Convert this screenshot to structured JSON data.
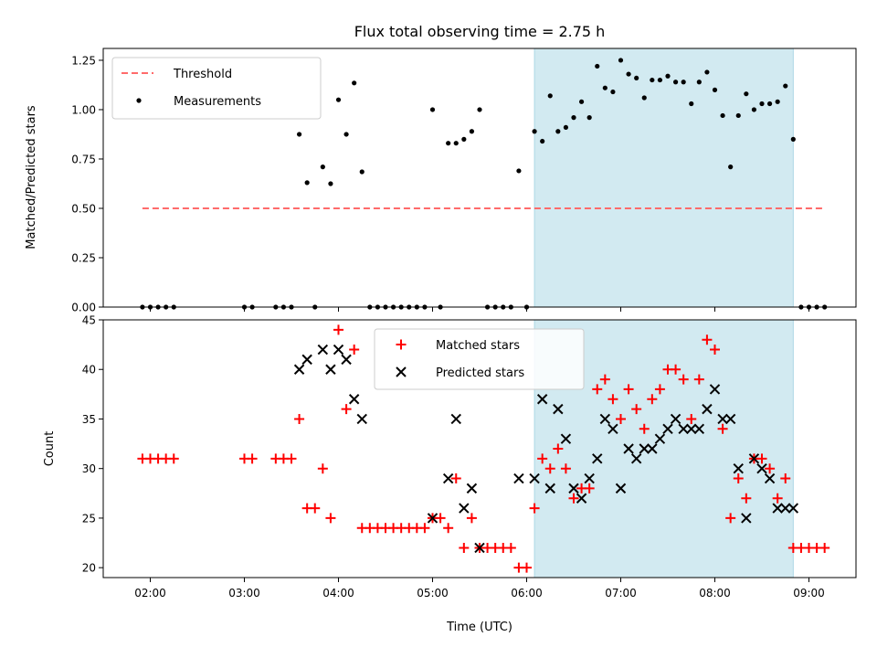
{
  "chart_data": [
    {
      "type": "scatter",
      "title": "Flux total observing time = 2.75 h",
      "ylabel": "Matched/Predicted stars",
      "xlabel": "",
      "x_axis_type": "time",
      "ylim": [
        0,
        1.31
      ],
      "xlim": [
        "01:30",
        "09:30"
      ],
      "yticks": [
        "0.00",
        "0.25",
        "0.50",
        "0.75",
        "1.00",
        "1.25"
      ],
      "xticks": [
        "02:00",
        "03:00",
        "04:00",
        "05:00",
        "06:00",
        "07:00",
        "08:00",
        "09:00"
      ],
      "show_xtick_labels": false,
      "grid": false,
      "legend_position": "top-left",
      "shaded_region": {
        "x_start": "06:05",
        "x_end": "08:50",
        "color": "#add8e6"
      },
      "series": [
        {
          "name": "Threshold",
          "kind": "line",
          "style": "dashed",
          "color": "#ff6b6b",
          "points": [
            {
              "x": "01:55",
              "y": 0.5
            },
            {
              "x": "09:10",
              "y": 0.5
            }
          ]
        },
        {
          "name": "Measurements",
          "kind": "dot",
          "color": "#000000",
          "points": [
            {
              "x": "01:55",
              "y": 0
            },
            {
              "x": "02:00",
              "y": 0
            },
            {
              "x": "02:05",
              "y": 0
            },
            {
              "x": "02:10",
              "y": 0
            },
            {
              "x": "02:15",
              "y": 0
            },
            {
              "x": "03:00",
              "y": 0
            },
            {
              "x": "03:05",
              "y": 0
            },
            {
              "x": "03:20",
              "y": 0
            },
            {
              "x": "03:25",
              "y": 0
            },
            {
              "x": "03:30",
              "y": 0
            },
            {
              "x": "03:35",
              "y": 0.875
            },
            {
              "x": "03:40",
              "y": 0.63
            },
            {
              "x": "03:45",
              "y": 0
            },
            {
              "x": "03:50",
              "y": 0.71
            },
            {
              "x": "03:55",
              "y": 0.625
            },
            {
              "x": "04:00",
              "y": 1.05
            },
            {
              "x": "04:05",
              "y": 0.875
            },
            {
              "x": "04:10",
              "y": 1.135
            },
            {
              "x": "04:15",
              "y": 0.685
            },
            {
              "x": "04:20",
              "y": 0
            },
            {
              "x": "04:25",
              "y": 0
            },
            {
              "x": "04:30",
              "y": 0
            },
            {
              "x": "04:35",
              "y": 0
            },
            {
              "x": "04:40",
              "y": 0
            },
            {
              "x": "04:45",
              "y": 0
            },
            {
              "x": "04:50",
              "y": 0
            },
            {
              "x": "04:55",
              "y": 0
            },
            {
              "x": "05:00",
              "y": 1.0
            },
            {
              "x": "05:05",
              "y": 0
            },
            {
              "x": "05:10",
              "y": 0.83
            },
            {
              "x": "05:15",
              "y": 0.83
            },
            {
              "x": "05:20",
              "y": 0.85
            },
            {
              "x": "05:25",
              "y": 0.89
            },
            {
              "x": "05:30",
              "y": 1.0
            },
            {
              "x": "05:35",
              "y": 0
            },
            {
              "x": "05:40",
              "y": 0
            },
            {
              "x": "05:45",
              "y": 0
            },
            {
              "x": "05:50",
              "y": 0
            },
            {
              "x": "05:55",
              "y": 0.69
            },
            {
              "x": "06:00",
              "y": 0
            },
            {
              "x": "06:05",
              "y": 0.89
            },
            {
              "x": "06:10",
              "y": 0.84
            },
            {
              "x": "06:15",
              "y": 1.07
            },
            {
              "x": "06:20",
              "y": 0.89
            },
            {
              "x": "06:25",
              "y": 0.91
            },
            {
              "x": "06:30",
              "y": 0.96
            },
            {
              "x": "06:35",
              "y": 1.04
            },
            {
              "x": "06:40",
              "y": 0.96
            },
            {
              "x": "06:45",
              "y": 1.22
            },
            {
              "x": "06:50",
              "y": 1.11
            },
            {
              "x": "06:55",
              "y": 1.09
            },
            {
              "x": "07:00",
              "y": 1.25
            },
            {
              "x": "07:05",
              "y": 1.18
            },
            {
              "x": "07:10",
              "y": 1.16
            },
            {
              "x": "07:15",
              "y": 1.06
            },
            {
              "x": "07:20",
              "y": 1.15
            },
            {
              "x": "07:25",
              "y": 1.15
            },
            {
              "x": "07:30",
              "y": 1.17
            },
            {
              "x": "07:35",
              "y": 1.14
            },
            {
              "x": "07:40",
              "y": 1.14
            },
            {
              "x": "07:45",
              "y": 1.03
            },
            {
              "x": "07:50",
              "y": 1.14
            },
            {
              "x": "07:55",
              "y": 1.19
            },
            {
              "x": "08:00",
              "y": 1.1
            },
            {
              "x": "08:05",
              "y": 0.97
            },
            {
              "x": "08:10",
              "y": 0.71
            },
            {
              "x": "08:15",
              "y": 0.97
            },
            {
              "x": "08:20",
              "y": 1.08
            },
            {
              "x": "08:25",
              "y": 1.0
            },
            {
              "x": "08:30",
              "y": 1.03
            },
            {
              "x": "08:35",
              "y": 1.03
            },
            {
              "x": "08:40",
              "y": 1.04
            },
            {
              "x": "08:45",
              "y": 1.12
            },
            {
              "x": "08:50",
              "y": 0.85
            },
            {
              "x": "08:55",
              "y": 0
            },
            {
              "x": "09:00",
              "y": 0
            },
            {
              "x": "09:05",
              "y": 0
            },
            {
              "x": "09:10",
              "y": 0
            }
          ]
        }
      ]
    },
    {
      "type": "scatter",
      "title": "",
      "ylabel": "Count",
      "xlabel": "Time (UTC)",
      "x_axis_type": "time",
      "ylim": [
        19,
        45
      ],
      "xlim": [
        "01:30",
        "09:30"
      ],
      "yticks": [
        "20",
        "25",
        "30",
        "35",
        "40",
        "45"
      ],
      "xticks": [
        "02:00",
        "03:00",
        "04:00",
        "05:00",
        "06:00",
        "07:00",
        "08:00",
        "09:00"
      ],
      "show_xtick_labels": true,
      "grid": false,
      "legend_position": "top-center",
      "shaded_region": {
        "x_start": "06:05",
        "x_end": "08:50",
        "color": "#add8e6"
      },
      "series": [
        {
          "name": "Matched stars",
          "kind": "plus",
          "color": "#ff0000",
          "points": [
            {
              "x": "01:55",
              "y": 31
            },
            {
              "x": "02:00",
              "y": 31
            },
            {
              "x": "02:05",
              "y": 31
            },
            {
              "x": "02:10",
              "y": 31
            },
            {
              "x": "02:15",
              "y": 31
            },
            {
              "x": "03:00",
              "y": 31
            },
            {
              "x": "03:05",
              "y": 31
            },
            {
              "x": "03:20",
              "y": 31
            },
            {
              "x": "03:25",
              "y": 31
            },
            {
              "x": "03:30",
              "y": 31
            },
            {
              "x": "03:35",
              "y": 35
            },
            {
              "x": "03:40",
              "y": 26
            },
            {
              "x": "03:45",
              "y": 26
            },
            {
              "x": "03:50",
              "y": 30
            },
            {
              "x": "03:55",
              "y": 25
            },
            {
              "x": "04:00",
              "y": 44
            },
            {
              "x": "04:05",
              "y": 36
            },
            {
              "x": "04:10",
              "y": 42
            },
            {
              "x": "04:15",
              "y": 24
            },
            {
              "x": "04:20",
              "y": 24
            },
            {
              "x": "04:25",
              "y": 24
            },
            {
              "x": "04:30",
              "y": 24
            },
            {
              "x": "04:35",
              "y": 24
            },
            {
              "x": "04:40",
              "y": 24
            },
            {
              "x": "04:45",
              "y": 24
            },
            {
              "x": "04:50",
              "y": 24
            },
            {
              "x": "04:55",
              "y": 24
            },
            {
              "x": "05:00",
              "y": 25
            },
            {
              "x": "05:05",
              "y": 25
            },
            {
              "x": "05:10",
              "y": 24
            },
            {
              "x": "05:15",
              "y": 29
            },
            {
              "x": "05:20",
              "y": 22
            },
            {
              "x": "05:25",
              "y": 25
            },
            {
              "x": "05:30",
              "y": 22
            },
            {
              "x": "05:35",
              "y": 22
            },
            {
              "x": "05:40",
              "y": 22
            },
            {
              "x": "05:45",
              "y": 22
            },
            {
              "x": "05:50",
              "y": 22
            },
            {
              "x": "05:55",
              "y": 20
            },
            {
              "x": "06:00",
              "y": 20
            },
            {
              "x": "06:05",
              "y": 26
            },
            {
              "x": "06:10",
              "y": 31
            },
            {
              "x": "06:15",
              "y": 30
            },
            {
              "x": "06:20",
              "y": 32
            },
            {
              "x": "06:25",
              "y": 30
            },
            {
              "x": "06:30",
              "y": 27
            },
            {
              "x": "06:35",
              "y": 28
            },
            {
              "x": "06:40",
              "y": 28
            },
            {
              "x": "06:45",
              "y": 38
            },
            {
              "x": "06:50",
              "y": 39
            },
            {
              "x": "06:55",
              "y": 37
            },
            {
              "x": "07:00",
              "y": 35
            },
            {
              "x": "07:05",
              "y": 38
            },
            {
              "x": "07:10",
              "y": 36
            },
            {
              "x": "07:15",
              "y": 34
            },
            {
              "x": "07:20",
              "y": 37
            },
            {
              "x": "07:25",
              "y": 38
            },
            {
              "x": "07:30",
              "y": 40
            },
            {
              "x": "07:35",
              "y": 40
            },
            {
              "x": "07:40",
              "y": 39
            },
            {
              "x": "07:45",
              "y": 35
            },
            {
              "x": "07:50",
              "y": 39
            },
            {
              "x": "07:55",
              "y": 43
            },
            {
              "x": "08:00",
              "y": 42
            },
            {
              "x": "08:05",
              "y": 34
            },
            {
              "x": "08:10",
              "y": 25
            },
            {
              "x": "08:15",
              "y": 29
            },
            {
              "x": "08:20",
              "y": 27
            },
            {
              "x": "08:25",
              "y": 31
            },
            {
              "x": "08:30",
              "y": 31
            },
            {
              "x": "08:35",
              "y": 30
            },
            {
              "x": "08:40",
              "y": 27
            },
            {
              "x": "08:45",
              "y": 29
            },
            {
              "x": "08:50",
              "y": 22
            },
            {
              "x": "08:55",
              "y": 22
            },
            {
              "x": "09:00",
              "y": 22
            },
            {
              "x": "09:05",
              "y": 22
            },
            {
              "x": "09:10",
              "y": 22
            }
          ]
        },
        {
          "name": "Predicted stars",
          "kind": "cross",
          "color": "#000000",
          "points": [
            {
              "x": "03:35",
              "y": 40
            },
            {
              "x": "03:40",
              "y": 41
            },
            {
              "x": "03:50",
              "y": 42
            },
            {
              "x": "03:55",
              "y": 40
            },
            {
              "x": "04:00",
              "y": 42
            },
            {
              "x": "04:05",
              "y": 41
            },
            {
              "x": "04:10",
              "y": 37
            },
            {
              "x": "04:15",
              "y": 35
            },
            {
              "x": "05:00",
              "y": 25
            },
            {
              "x": "05:10",
              "y": 29
            },
            {
              "x": "05:15",
              "y": 35
            },
            {
              "x": "05:20",
              "y": 26
            },
            {
              "x": "05:25",
              "y": 28
            },
            {
              "x": "05:30",
              "y": 22
            },
            {
              "x": "05:55",
              "y": 29
            },
            {
              "x": "06:05",
              "y": 29
            },
            {
              "x": "06:10",
              "y": 37
            },
            {
              "x": "06:15",
              "y": 28
            },
            {
              "x": "06:20",
              "y": 36
            },
            {
              "x": "06:25",
              "y": 33
            },
            {
              "x": "06:30",
              "y": 28
            },
            {
              "x": "06:35",
              "y": 27
            },
            {
              "x": "06:40",
              "y": 29
            },
            {
              "x": "06:45",
              "y": 31
            },
            {
              "x": "06:50",
              "y": 35
            },
            {
              "x": "06:55",
              "y": 34
            },
            {
              "x": "07:00",
              "y": 28
            },
            {
              "x": "07:05",
              "y": 32
            },
            {
              "x": "07:10",
              "y": 31
            },
            {
              "x": "07:15",
              "y": 32
            },
            {
              "x": "07:20",
              "y": 32
            },
            {
              "x": "07:25",
              "y": 33
            },
            {
              "x": "07:30",
              "y": 34
            },
            {
              "x": "07:35",
              "y": 35
            },
            {
              "x": "07:40",
              "y": 34
            },
            {
              "x": "07:45",
              "y": 34
            },
            {
              "x": "07:50",
              "y": 34
            },
            {
              "x": "07:55",
              "y": 36
            },
            {
              "x": "08:00",
              "y": 38
            },
            {
              "x": "08:05",
              "y": 35
            },
            {
              "x": "08:10",
              "y": 35
            },
            {
              "x": "08:15",
              "y": 30
            },
            {
              "x": "08:20",
              "y": 25
            },
            {
              "x": "08:25",
              "y": 31
            },
            {
              "x": "08:30",
              "y": 30
            },
            {
              "x": "08:35",
              "y": 29
            },
            {
              "x": "08:40",
              "y": 26
            },
            {
              "x": "08:45",
              "y": 26
            },
            {
              "x": "08:50",
              "y": 26
            }
          ]
        }
      ]
    }
  ]
}
